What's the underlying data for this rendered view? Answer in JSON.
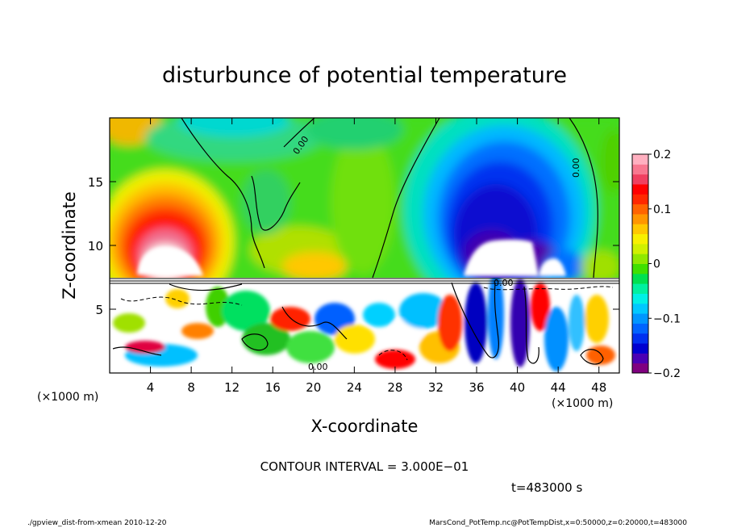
{
  "chart_data": {
    "type": "heatmap",
    "title": "disturbunce of potential temperature",
    "xlabel": "X-coordinate",
    "ylabel": "Z-coordinate",
    "x_unit_left": "(×1000 m)",
    "x_unit_right": "(×1000 m)",
    "xlim": [
      0,
      50
    ],
    "ylim": [
      0,
      20
    ],
    "x_ticks": [
      4,
      8,
      12,
      16,
      20,
      24,
      28,
      32,
      36,
      40,
      44,
      48
    ],
    "y_ticks": [
      5,
      10,
      15
    ],
    "colorbar": {
      "range": [
        -0.2,
        0.2
      ],
      "ticks": [
        "0.2",
        "0.1",
        "0",
        "−0.1",
        "−0.2"
      ],
      "tick_values": [
        0.2,
        0.1,
        0,
        -0.1,
        -0.2
      ],
      "colors": [
        "#800080",
        "#4b00b4",
        "#0000d0",
        "#0030f0",
        "#0064ff",
        "#0096ff",
        "#00c8ff",
        "#00f0e6",
        "#00f0a0",
        "#00e050",
        "#40e000",
        "#90e800",
        "#d0f000",
        "#f8f000",
        "#ffc800",
        "#ff9600",
        "#ff6400",
        "#ff2800",
        "#ff0000",
        "#f04060",
        "#f87890",
        "#ffb0c0"
      ]
    },
    "contour_labels": [
      "0.00",
      "0.00",
      "0.00",
      "0.00"
    ],
    "contour_interval_text": "CONTOUR INTERVAL = 3.000E−01",
    "time_text": "t=483000 s",
    "features": [
      {
        "kind": "warm_anomaly",
        "x": 6,
        "z": 11,
        "value": 0.2
      },
      {
        "kind": "cold_anomaly",
        "x": 38.5,
        "z": 12,
        "value": -0.2
      },
      {
        "kind": "turbulent_layer",
        "z_top": 7.3
      }
    ]
  },
  "footer": {
    "left": "./gpview_dist-from-xmean  2010-12-20",
    "right": "MarsCond_PotTemp.nc@PotTempDist,x=0:50000,z=0:20000,t=483000"
  }
}
